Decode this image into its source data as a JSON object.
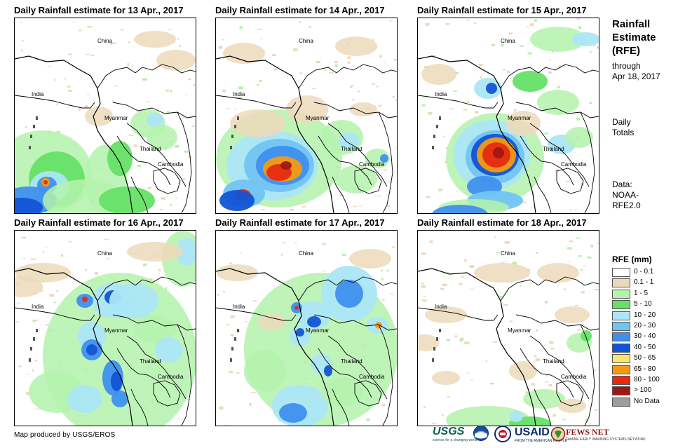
{
  "panels": [
    {
      "title": "Daily Rainfall estimate for 13 Apr., 2017",
      "intensity": "moderate-southwest"
    },
    {
      "title": "Daily Rainfall estimate for 14 Apr., 2017",
      "intensity": "heavy-bay"
    },
    {
      "title": "Daily Rainfall estimate for 15 Apr., 2017",
      "intensity": "heavy-coast"
    },
    {
      "title": "Daily Rainfall estimate for 16 Apr., 2017",
      "intensity": "widespread"
    },
    {
      "title": "Daily Rainfall estimate for 17 Apr., 2017",
      "intensity": "widespread-central"
    },
    {
      "title": "Daily Rainfall estimate for 18 Apr., 2017",
      "intensity": "light"
    }
  ],
  "map_labels": {
    "china": "China",
    "india": "India",
    "myanmar": "Myanmar",
    "thailand": "Thailand",
    "cambodia": "Cambodia"
  },
  "sidebar": {
    "title_line1": "Rainfall",
    "title_line2": "Estimate",
    "title_line3": "(RFE)",
    "through": "through",
    "date": "Apr 18, 2017",
    "daily1": "Daily",
    "daily2": "Totals",
    "data1": "Data:",
    "data2": "NOAA-",
    "data3": "RFE2.0"
  },
  "legend": {
    "title": "RFE (mm)",
    "items": [
      {
        "label": "0 - 0.1",
        "color": "#ffffff"
      },
      {
        "label": "0.1 - 1",
        "color": "#ecd9bb"
      },
      {
        "label": "1 - 5",
        "color": "#b4f2ad"
      },
      {
        "label": "5 - 10",
        "color": "#66e067"
      },
      {
        "label": "10 - 20",
        "color": "#abe6f5"
      },
      {
        "label": "20 - 30",
        "color": "#72c4f2"
      },
      {
        "label": "30 - 40",
        "color": "#3f90ee"
      },
      {
        "label": "40 - 50",
        "color": "#1254d6"
      },
      {
        "label": "50 - 65",
        "color": "#fbe476"
      },
      {
        "label": "65 - 80",
        "color": "#f59a10"
      },
      {
        "label": "80 - 100",
        "color": "#e62b10"
      },
      {
        "label": "> 100",
        "color": "#a01616"
      },
      {
        "label": "No Data",
        "color": "#9d9d9d"
      }
    ]
  },
  "credit": "Map produced by USGS/EROS",
  "logos": {
    "usgs": "USGS",
    "usgs_tag": "science for a changing world",
    "usaid": "USAID",
    "usaid_tag": "FROM THE AMERICAN PEOPLE",
    "fews": "FEWS NET",
    "fews_tag": "FAMINE EARLY WARNING SYSTEMS NETWORK"
  }
}
